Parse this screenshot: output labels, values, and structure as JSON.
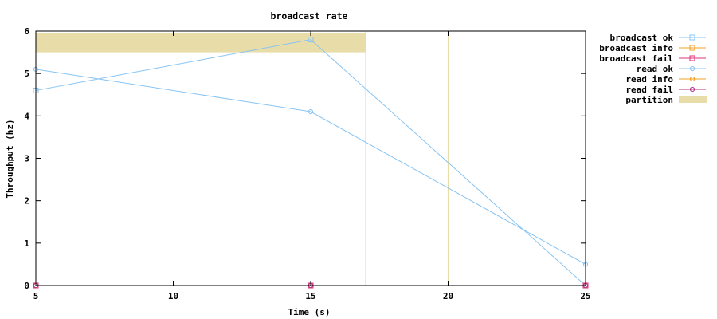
{
  "chart_data": {
    "type": "line",
    "title": "broadcast rate",
    "xlabel": "Time (s)",
    "ylabel": "Throughput (hz)",
    "xlim": [
      5,
      25
    ],
    "ylim": [
      0,
      6
    ],
    "xticks": [
      5,
      10,
      15,
      20,
      25
    ],
    "yticks": [
      0,
      1,
      2,
      3,
      4,
      5,
      6
    ],
    "grid": false,
    "legend_position": "outside-right",
    "series": [
      {
        "name": "broadcast ok",
        "color": "#87c3f2",
        "marker": "square",
        "x": [
          5,
          15,
          25
        ],
        "y": [
          4.6,
          5.8,
          0
        ]
      },
      {
        "name": "broadcast info",
        "color": "#f0a020",
        "marker": "square",
        "x": [
          5,
          15,
          25
        ],
        "y": [
          0,
          0,
          0
        ]
      },
      {
        "name": "broadcast fail",
        "color": "#e0307a",
        "marker": "square",
        "x": [
          5,
          15,
          25
        ],
        "y": [
          0,
          0,
          0
        ]
      },
      {
        "name": "read ok",
        "color": "#87c3f2",
        "marker": "circle",
        "x": [
          5,
          15,
          25
        ],
        "y": [
          5.1,
          4.1,
          0.5
        ]
      },
      {
        "name": "read info",
        "color": "#f0a020",
        "marker": "circle",
        "x": [
          5,
          15,
          25
        ],
        "y": [
          0,
          0,
          0
        ]
      },
      {
        "name": "read fail",
        "color": "#b0308a",
        "marker": "circle",
        "x": [
          5,
          15,
          25
        ],
        "y": [
          0,
          0,
          0
        ]
      }
    ],
    "partition": {
      "name": "partition",
      "color": "#e8dca8",
      "band": {
        "x_start": 5,
        "x_end": 17,
        "y_start": 5.5,
        "y_end": 5.95
      },
      "lines": [
        17,
        20
      ]
    }
  }
}
